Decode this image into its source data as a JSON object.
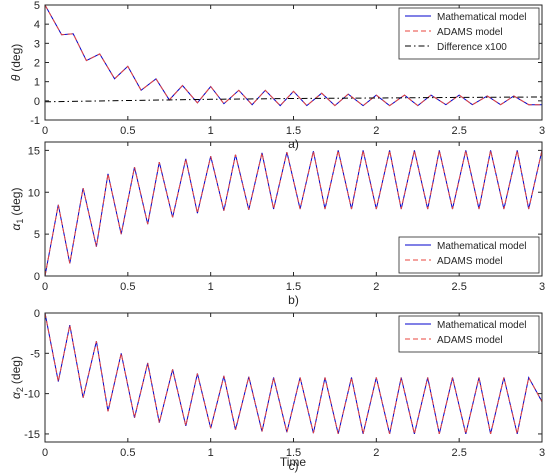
{
  "figure": {
    "x_title": "Time",
    "colors": {
      "series_model": "#0000cc",
      "series_adams": "#e8453c",
      "series_diff": "#000000",
      "axes": "#262626",
      "background": "#ffffff"
    }
  },
  "chart_data": [
    {
      "type": "line",
      "panel_tag": "a)",
      "ylabel": {
        "symbol": "θ",
        "unit": "(deg)"
      },
      "xlim": [
        0,
        3
      ],
      "ylim": [
        -1,
        5
      ],
      "xticks": [
        0,
        0.5,
        1,
        1.5,
        2,
        2.5,
        3
      ],
      "xtick_labels": [
        "0",
        "0.5",
        "1",
        "1.5",
        "2",
        "2.5",
        "3"
      ],
      "yticks": [
        -1,
        0,
        1,
        2,
        3,
        4,
        5
      ],
      "ytick_labels": [
        "-1",
        "0",
        "1",
        "2",
        "3",
        "4",
        "5"
      ],
      "grid": false,
      "legend": {
        "placement": "top-right",
        "entries": [
          "Mathematical model",
          "ADAMS model",
          "Difference x100"
        ]
      },
      "series": [
        {
          "name": "Mathematical model",
          "color": "#0000cc",
          "dash": "solid",
          "x": [
            0,
            0.1,
            0.17,
            0.25,
            0.33,
            0.42,
            0.5,
            0.58,
            0.67,
            0.75,
            0.83,
            0.92,
            1.0,
            1.08,
            1.17,
            1.25,
            1.33,
            1.42,
            1.5,
            1.58,
            1.67,
            1.75,
            1.83,
            1.92,
            2.0,
            2.08,
            2.17,
            2.25,
            2.33,
            2.42,
            2.5,
            2.58,
            2.67,
            2.75,
            2.83,
            2.92,
            3.0
          ],
          "y": [
            5.0,
            3.45,
            3.5,
            2.1,
            2.45,
            1.15,
            1.8,
            0.55,
            1.15,
            0.05,
            0.8,
            -0.1,
            0.75,
            -0.15,
            0.55,
            -0.2,
            0.55,
            -0.25,
            0.5,
            -0.25,
            0.4,
            -0.25,
            0.35,
            -0.25,
            0.3,
            -0.25,
            0.3,
            -0.25,
            0.3,
            -0.2,
            0.3,
            -0.2,
            0.25,
            -0.2,
            0.25,
            -0.2,
            -0.2
          ]
        },
        {
          "name": "ADAMS model",
          "color": "#e8453c",
          "dash": "dashed",
          "x": [
            0,
            0.1,
            0.17,
            0.25,
            0.33,
            0.42,
            0.5,
            0.58,
            0.67,
            0.75,
            0.83,
            0.92,
            1.0,
            1.08,
            1.17,
            1.25,
            1.33,
            1.42,
            1.5,
            1.58,
            1.67,
            1.75,
            1.83,
            1.92,
            2.0,
            2.08,
            2.17,
            2.25,
            2.33,
            2.42,
            2.5,
            2.58,
            2.67,
            2.75,
            2.83,
            2.92,
            3.0
          ],
          "y": [
            5.0,
            3.45,
            3.5,
            2.1,
            2.45,
            1.15,
            1.8,
            0.55,
            1.15,
            0.05,
            0.8,
            -0.1,
            0.75,
            -0.15,
            0.55,
            -0.2,
            0.55,
            -0.25,
            0.5,
            -0.25,
            0.4,
            -0.25,
            0.35,
            -0.25,
            0.3,
            -0.25,
            0.3,
            -0.25,
            0.3,
            -0.2,
            0.3,
            -0.2,
            0.25,
            -0.2,
            0.25,
            -0.2,
            -0.2
          ]
        },
        {
          "name": "Difference x100",
          "color": "#000000",
          "dash": "dashdot",
          "x": [
            0,
            0.5,
            1.0,
            1.5,
            2.0,
            2.5,
            3.0
          ],
          "y": [
            -0.05,
            0.02,
            0.08,
            0.12,
            0.15,
            0.18,
            0.2
          ]
        }
      ]
    },
    {
      "type": "line",
      "panel_tag": "b)",
      "ylabel": {
        "symbol": "α",
        "subscript": "1",
        "unit": "(deg)"
      },
      "xlim": [
        0,
        3
      ],
      "ylim": [
        0,
        16
      ],
      "xticks": [
        0,
        0.5,
        1,
        1.5,
        2,
        2.5,
        3
      ],
      "xtick_labels": [
        "0",
        "0.5",
        "1",
        "1.5",
        "2",
        "2.5",
        "3"
      ],
      "yticks": [
        0,
        5,
        10,
        15
      ],
      "ytick_labels": [
        "0",
        "5",
        "10",
        "15"
      ],
      "grid": false,
      "legend": {
        "placement": "bottom-right",
        "entries": [
          "Mathematical model",
          "ADAMS model"
        ]
      },
      "series": [
        {
          "name": "Mathematical model",
          "color": "#0000cc",
          "dash": "solid",
          "x": [
            0,
            0.08,
            0.15,
            0.23,
            0.31,
            0.38,
            0.46,
            0.54,
            0.62,
            0.69,
            0.77,
            0.85,
            0.92,
            1.0,
            1.08,
            1.15,
            1.23,
            1.31,
            1.38,
            1.46,
            1.54,
            1.62,
            1.69,
            1.77,
            1.85,
            1.92,
            2.0,
            2.08,
            2.15,
            2.23,
            2.31,
            2.38,
            2.46,
            2.54,
            2.62,
            2.69,
            2.77,
            2.85,
            2.92,
            3.0
          ],
          "y": [
            0,
            8.5,
            1.5,
            10.5,
            3.5,
            12.2,
            5.0,
            13.0,
            6.2,
            13.6,
            7.0,
            14.0,
            7.5,
            14.3,
            7.8,
            14.5,
            7.9,
            14.7,
            8.0,
            14.8,
            8.0,
            14.9,
            8.0,
            15.0,
            8.0,
            15.0,
            8.0,
            15.0,
            8.0,
            15.0,
            8.0,
            15.0,
            8.0,
            15.0,
            8.0,
            15.0,
            8.0,
            15.0,
            8.0,
            15.0
          ]
        },
        {
          "name": "ADAMS model",
          "color": "#e8453c",
          "dash": "dashed",
          "x": [
            0,
            0.08,
            0.15,
            0.23,
            0.31,
            0.38,
            0.46,
            0.54,
            0.62,
            0.69,
            0.77,
            0.85,
            0.92,
            1.0,
            1.08,
            1.15,
            1.23,
            1.31,
            1.38,
            1.46,
            1.54,
            1.62,
            1.69,
            1.77,
            1.85,
            1.92,
            2.0,
            2.08,
            2.15,
            2.23,
            2.31,
            2.38,
            2.46,
            2.54,
            2.62,
            2.69,
            2.77,
            2.85,
            2.92,
            3.0
          ],
          "y": [
            0,
            8.5,
            1.5,
            10.5,
            3.5,
            12.2,
            5.0,
            13.0,
            6.2,
            13.6,
            7.0,
            14.0,
            7.5,
            14.3,
            7.8,
            14.5,
            7.9,
            14.7,
            8.0,
            14.8,
            8.0,
            14.9,
            8.0,
            15.0,
            8.0,
            15.0,
            8.0,
            15.0,
            8.0,
            15.0,
            8.0,
            15.0,
            8.0,
            15.0,
            8.0,
            15.0,
            8.0,
            15.0,
            8.0,
            15.0
          ]
        }
      ]
    },
    {
      "type": "line",
      "panel_tag": "c)",
      "ylabel": {
        "symbol": "α",
        "subscript": "2",
        "unit": "(deg)"
      },
      "xlim": [
        0,
        3
      ],
      "ylim": [
        -16,
        0
      ],
      "xticks": [
        0,
        0.5,
        1,
        1.5,
        2,
        2.5,
        3
      ],
      "xtick_labels": [
        "0",
        "0.5",
        "1",
        "1.5",
        "2",
        "2.5",
        "3"
      ],
      "yticks": [
        -15,
        -10,
        -5,
        0
      ],
      "ytick_labels": [
        "-15",
        "-10",
        "-5",
        "0"
      ],
      "grid": false,
      "legend": {
        "placement": "top-right",
        "entries": [
          "Mathematical model",
          "ADAMS model"
        ]
      },
      "series": [
        {
          "name": "Mathematical model",
          "color": "#0000cc",
          "dash": "solid",
          "x": [
            0,
            0.08,
            0.15,
            0.23,
            0.31,
            0.38,
            0.46,
            0.54,
            0.62,
            0.69,
            0.77,
            0.85,
            0.92,
            1.0,
            1.08,
            1.15,
            1.23,
            1.31,
            1.38,
            1.46,
            1.54,
            1.62,
            1.69,
            1.77,
            1.85,
            1.92,
            2.0,
            2.08,
            2.15,
            2.23,
            2.31,
            2.38,
            2.46,
            2.54,
            2.62,
            2.69,
            2.77,
            2.85,
            2.92,
            3.0
          ],
          "y": [
            0,
            -8.5,
            -1.5,
            -10.5,
            -3.5,
            -12.2,
            -5.0,
            -13.0,
            -6.2,
            -13.6,
            -7.0,
            -14.0,
            -7.5,
            -14.3,
            -7.8,
            -14.5,
            -7.9,
            -14.7,
            -8.0,
            -14.8,
            -8.0,
            -14.9,
            -8.0,
            -15.0,
            -8.0,
            -15.0,
            -8.0,
            -15.0,
            -8.0,
            -15.0,
            -8.0,
            -15.0,
            -8.0,
            -15.0,
            -8.0,
            -15.0,
            -8.0,
            -15.0,
            -8.0,
            -11.0
          ]
        },
        {
          "name": "ADAMS model",
          "color": "#e8453c",
          "dash": "dashed",
          "x": [
            0,
            0.08,
            0.15,
            0.23,
            0.31,
            0.38,
            0.46,
            0.54,
            0.62,
            0.69,
            0.77,
            0.85,
            0.92,
            1.0,
            1.08,
            1.15,
            1.23,
            1.31,
            1.38,
            1.46,
            1.54,
            1.62,
            1.69,
            1.77,
            1.85,
            1.92,
            2.0,
            2.08,
            2.15,
            2.23,
            2.31,
            2.38,
            2.46,
            2.54,
            2.62,
            2.69,
            2.77,
            2.85,
            2.92,
            3.0
          ],
          "y": [
            0,
            -8.5,
            -1.5,
            -10.5,
            -3.5,
            -12.2,
            -5.0,
            -13.0,
            -6.2,
            -13.6,
            -7.0,
            -14.0,
            -7.5,
            -14.3,
            -7.8,
            -14.5,
            -7.9,
            -14.7,
            -8.0,
            -14.8,
            -8.0,
            -14.9,
            -8.0,
            -15.0,
            -8.0,
            -15.0,
            -8.0,
            -15.0,
            -8.0,
            -15.0,
            -8.0,
            -15.0,
            -8.0,
            -15.0,
            -8.0,
            -15.0,
            -8.0,
            -15.0,
            -8.0,
            -11.0
          ]
        }
      ]
    }
  ]
}
